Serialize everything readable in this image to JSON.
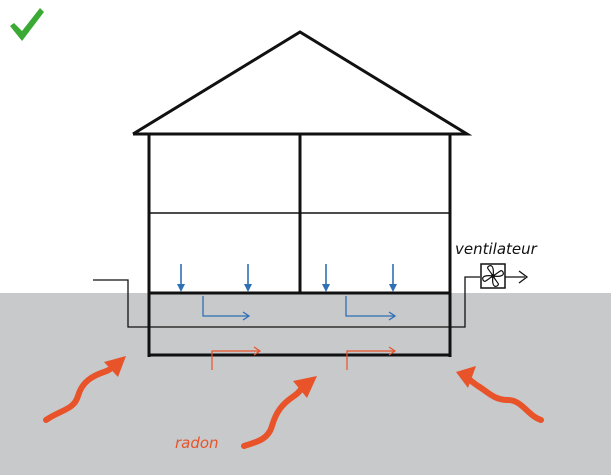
{
  "labels": {
    "ventilateur": "ventilateur",
    "radon": "radon"
  },
  "icons": {
    "status": "check-mark-icon",
    "fan": "fan-icon"
  },
  "colors": {
    "check": "#3aaa35",
    "ground": "#c8c9cb",
    "structure": "#111111",
    "air_flow": "#2f6fb5",
    "radon": "#e8532a"
  }
}
